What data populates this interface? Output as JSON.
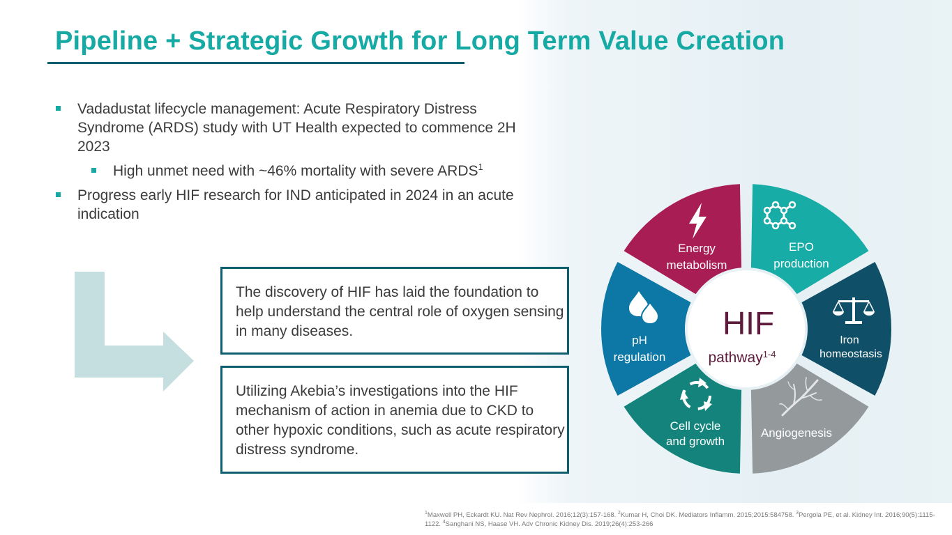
{
  "title": "Pipeline + Strategic Growth for Long Term Value Creation",
  "bullets": [
    {
      "text": "Vadadustat lifecycle management: Acute Respiratory Distress Syndrome (ARDS) study with UT Health expected to commence 2H 2023"
    },
    {
      "text": "High unmet need with ~46% mortality with severe ARDS",
      "sup": "1"
    },
    {
      "text": "Progress early HIF research for IND anticipated in 2024 in an acute indication"
    }
  ],
  "boxes": [
    "The discovery of HIF has laid the foundation to help understand the central role of oxygen sensing in many diseases.",
    "Utilizing Akebia’s investigations into the HIF mechanism of action in anemia due to CKD to other hypoxic conditions, such as acute respiratory distress syndrome."
  ],
  "wheel": {
    "center_title": "HIF",
    "center_subtitle": "pathway",
    "center_sup": "1-4",
    "segments": [
      {
        "line1": "EPO",
        "line2": "production",
        "color": "#17aca6",
        "icon": "molecule-icon"
      },
      {
        "line1": "Iron",
        "line2": "homeostasis",
        "color": "#0f4f67",
        "icon": "balance-scale-icon"
      },
      {
        "line1": "Angiogenesis",
        "line2": "",
        "color": "#94999c",
        "icon": "vessel-branch-icon"
      },
      {
        "line1": "Cell cycle",
        "line2": "and growth",
        "color": "#13837c",
        "icon": "cycle-arrows-icon"
      },
      {
        "line1": "pH",
        "line2": "regulation",
        "color": "#0d78a6",
        "icon": "droplets-icon"
      },
      {
        "line1": "Energy",
        "line2": "metabolism",
        "color": "#a81d53",
        "icon": "lightning-icon"
      }
    ]
  },
  "colors": {
    "accent": "#17a9a3",
    "dark": "#0f5e6f",
    "arrow": "#c5dfe0"
  },
  "references": {
    "r1": "Maxwell PH, Eckardt KU. Nat Rev Nephrol. 2016;12(3):157-168. ",
    "r2": "Kumar H, Choi DK. Mediators Inflamm. 2015;2015:584758. ",
    "r3": "Pergola PE, et al. Kidney Int. 2016;90(5):1115-1122. ",
    "r4": "Sanghani NS, Haase VH. Adv Chronic Kidney Dis. 2019;26(4):253-266",
    "s1": "1",
    "s2": "2",
    "s3": "3",
    "s4": "4"
  }
}
